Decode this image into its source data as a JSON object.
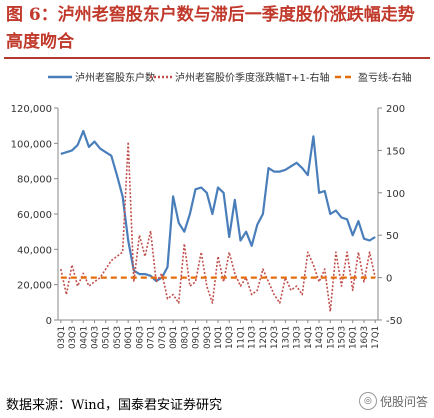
{
  "header": {
    "title": "图 6：泸州老窖股东户数与滞后一季度股价涨跌幅走势高度吻合"
  },
  "footer": {
    "source": "数据来源：Wind，国泰君安证券研究",
    "watermark": "倪股问答"
  },
  "chart_data": {
    "type": "line",
    "title": "",
    "legend_position": "top",
    "grid": false,
    "x": [
      "03Q1",
      "03Q2",
      "03Q3",
      "03Q4",
      "04Q1",
      "04Q2",
      "04Q3",
      "04Q4",
      "05Q1",
      "05Q2",
      "05Q3",
      "05Q4",
      "06Q1",
      "06Q2",
      "06Q3",
      "06Q4",
      "07Q1",
      "07Q2",
      "07Q3",
      "07Q4",
      "08Q1",
      "08Q2",
      "08Q3",
      "08Q4",
      "09Q1",
      "09Q2",
      "09Q3",
      "09Q4",
      "10Q1",
      "10Q2",
      "10Q3",
      "10Q4",
      "11Q1",
      "11Q2",
      "11Q3",
      "11Q4",
      "12Q1",
      "12Q2",
      "12Q3",
      "12Q4",
      "13Q1",
      "13Q2",
      "13Q3",
      "13Q4",
      "14Q1",
      "14Q2",
      "14Q3",
      "14Q4",
      "15Q1",
      "15Q2",
      "15Q3",
      "15Q4",
      "16Q1",
      "16Q2",
      "16Q3",
      "16Q4",
      "17Q1"
    ],
    "x_tick_labels": [
      "03Q1",
      "03Q3",
      "04Q1",
      "04Q3",
      "05Q1",
      "05Q3",
      "06Q1",
      "06Q3",
      "07Q1",
      "07Q3",
      "08Q1",
      "08Q3",
      "09Q1",
      "09Q3",
      "10Q1",
      "10Q3",
      "11Q1",
      "11Q3",
      "12Q1",
      "12Q3",
      "13Q1",
      "13Q3",
      "14Q1",
      "14Q3",
      "15Q1",
      "15Q3",
      "16Q1",
      "16Q3",
      "17Q1"
    ],
    "y_left": {
      "ylim": [
        0,
        120000
      ],
      "ticks": [
        "0",
        "20,000",
        "40,000",
        "60,000",
        "80,000",
        "100,000",
        "120,000"
      ]
    },
    "y_right": {
      "ylim": [
        -50,
        200
      ],
      "ticks": [
        "-50",
        "0",
        "50",
        "100",
        "150",
        "200"
      ]
    },
    "series": [
      {
        "name": "泸州老窖股东户数",
        "axis": "left",
        "color": "#4a7ebb",
        "style": "solid",
        "values": [
          94000,
          95000,
          96000,
          99000,
          107000,
          98000,
          101000,
          97000,
          95000,
          93000,
          82000,
          70000,
          45000,
          28000,
          26000,
          26000,
          25000,
          22000,
          24000,
          30000,
          70000,
          55000,
          50000,
          60000,
          74000,
          75000,
          72000,
          60000,
          75000,
          72000,
          47000,
          68000,
          45000,
          50000,
          42000,
          54000,
          60000,
          86000,
          84000,
          84000,
          85000,
          87000,
          89000,
          86000,
          82000,
          104000,
          72000,
          73000,
          60000,
          62000,
          58000,
          57000,
          48000,
          56000,
          46000,
          45000,
          47000
        ]
      },
      {
        "name": "泸州老窖股价季度涨跌幅T+1-右轴",
        "axis": "right",
        "color": "#c0504d",
        "style": "dotted",
        "values": [
          10,
          -20,
          15,
          -10,
          5,
          -10,
          -5,
          0,
          10,
          20,
          25,
          30,
          160,
          -5,
          50,
          25,
          55,
          -5,
          5,
          -25,
          -20,
          -30,
          40,
          -10,
          -5,
          30,
          -10,
          -30,
          25,
          -5,
          30,
          5,
          -10,
          0,
          -20,
          -15,
          10,
          -5,
          -20,
          -30,
          0,
          -15,
          -10,
          -20,
          30,
          15,
          -5,
          10,
          -40,
          30,
          -10,
          30,
          -15,
          30,
          -5,
          30,
          0
        ]
      },
      {
        "name": "盈亏线-右轴",
        "axis": "right",
        "color": "#e46c0a",
        "style": "dashed",
        "values": [
          0,
          0,
          0,
          0,
          0,
          0,
          0,
          0,
          0,
          0,
          0,
          0,
          0,
          0,
          0,
          0,
          0,
          0,
          0,
          0,
          0,
          0,
          0,
          0,
          0,
          0,
          0,
          0,
          0,
          0,
          0,
          0,
          0,
          0,
          0,
          0,
          0,
          0,
          0,
          0,
          0,
          0,
          0,
          0,
          0,
          0,
          0,
          0,
          0,
          0,
          0,
          0,
          0,
          0,
          0,
          0,
          0
        ]
      }
    ]
  }
}
